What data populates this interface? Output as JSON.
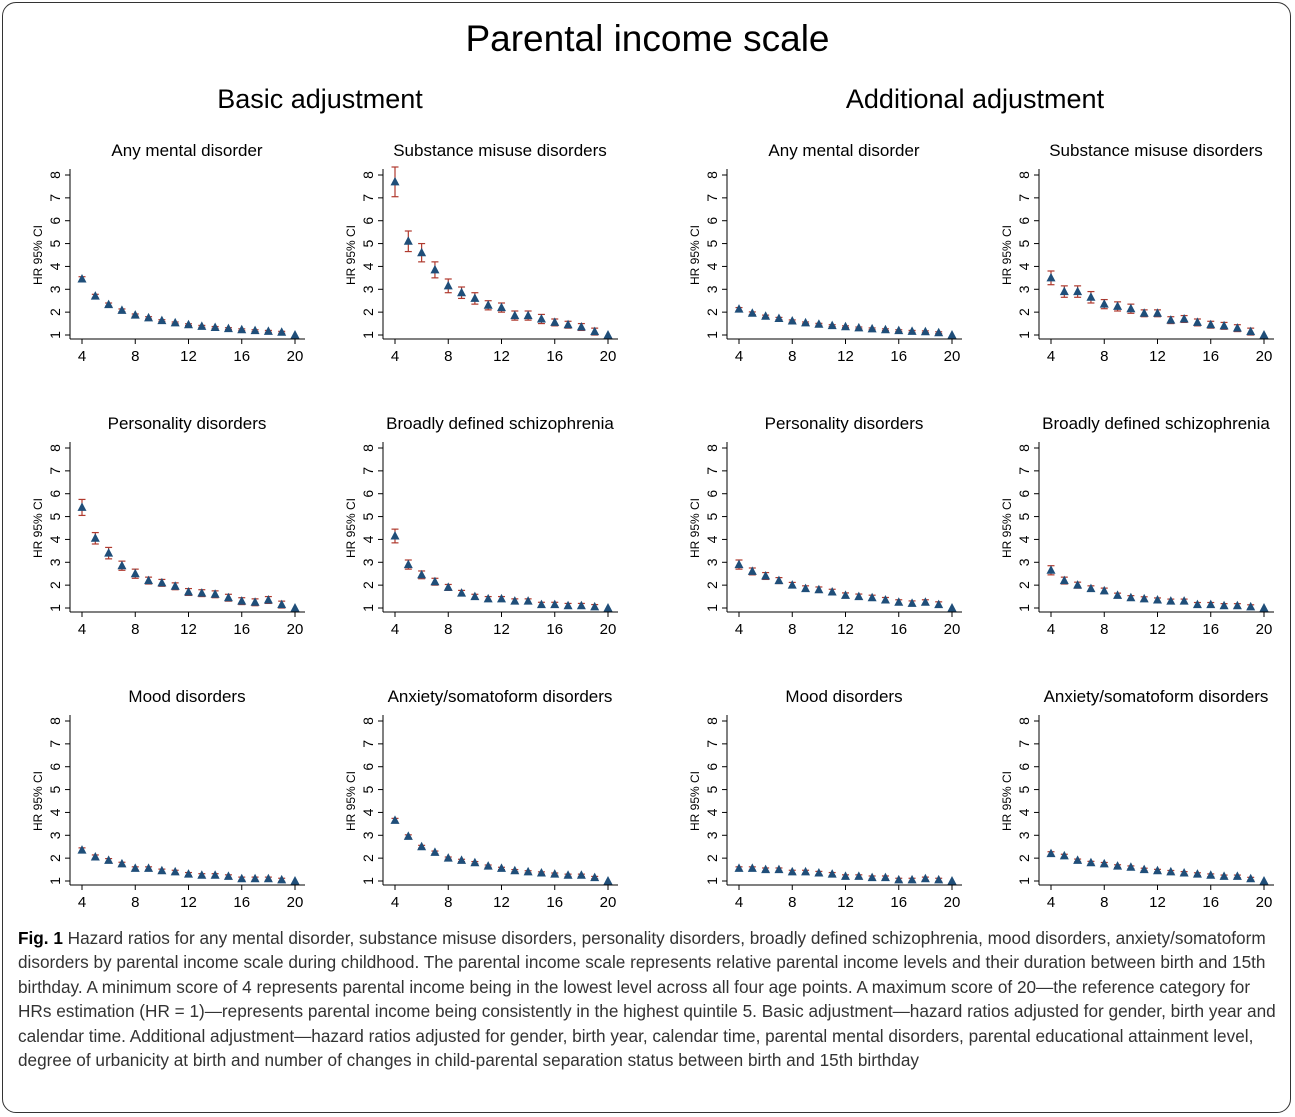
{
  "figure": {
    "main_title": "Parental income scale",
    "group_titles": [
      "Basic adjustment",
      "Additional adjustment"
    ],
    "caption_label": "Fig. 1",
    "caption_text": "Hazard ratios for any mental disorder, substance misuse disorders, personality disorders, broadly defined schizophrenia, mood disorders, anxiety/somatoform disorders by parental income scale during childhood. The parental income scale represents relative parental income levels and their duration between birth and 15th birthday. A minimum score of 4 represents parental income being in the lowest level across all four age points. A maximum score of 20—the reference category for HRs estimation (HR = 1)—represents parental income being consistently in the highest quintile 5. Basic adjustment—hazard ratios adjusted for gender, birth year and calendar time. Additional adjustment—hazard ratios adjusted for gender, birth year, calendar time, parental mental disorders, parental educational attainment level, degree of urbanicity at birth and number of changes in child-parental separation status between birth and 15th birthday"
  },
  "colors": {
    "marker": "#1f4e79",
    "ci": "#b03a2e",
    "axis": "#000000"
  },
  "chart_data": [
    {
      "type": "scatter",
      "group": "Basic adjustment",
      "title": "Any mental disorder",
      "ylabel": "HR 95% CI",
      "xlim": [
        4,
        20
      ],
      "ylim": [
        1,
        8
      ],
      "xticks": [
        4,
        8,
        12,
        16,
        20
      ],
      "yticks": [
        1,
        2,
        3,
        4,
        5,
        6,
        7,
        8
      ],
      "x": [
        4,
        5,
        6,
        7,
        8,
        9,
        10,
        11,
        12,
        13,
        14,
        15,
        16,
        17,
        18,
        19,
        20
      ],
      "y": [
        3.45,
        2.7,
        2.33,
        2.08,
        1.87,
        1.75,
        1.63,
        1.53,
        1.45,
        1.38,
        1.33,
        1.28,
        1.23,
        1.19,
        1.16,
        1.12,
        1.0
      ],
      "ci_low": [
        3.35,
        2.62,
        2.26,
        2.02,
        1.82,
        1.7,
        1.59,
        1.49,
        1.41,
        1.34,
        1.29,
        1.24,
        1.19,
        1.15,
        1.12,
        1.08,
        1.0
      ],
      "ci_high": [
        3.55,
        2.78,
        2.4,
        2.14,
        1.92,
        1.8,
        1.67,
        1.57,
        1.49,
        1.42,
        1.37,
        1.32,
        1.27,
        1.23,
        1.2,
        1.16,
        1.0
      ]
    },
    {
      "type": "scatter",
      "group": "Basic adjustment",
      "title": "Substance misuse disorders",
      "ylabel": "HR 95% CI",
      "xlim": [
        4,
        20
      ],
      "ylim": [
        1,
        8
      ],
      "xticks": [
        4,
        8,
        12,
        16,
        20
      ],
      "yticks": [
        1,
        2,
        3,
        4,
        5,
        6,
        7,
        8
      ],
      "x": [
        4,
        5,
        6,
        7,
        8,
        9,
        10,
        11,
        12,
        13,
        14,
        15,
        16,
        17,
        18,
        19,
        20
      ],
      "y": [
        7.7,
        5.1,
        4.6,
        3.85,
        3.15,
        2.85,
        2.6,
        2.3,
        2.2,
        1.85,
        1.85,
        1.7,
        1.55,
        1.45,
        1.35,
        1.15,
        1.0
      ],
      "ci_low": [
        7.05,
        4.65,
        4.2,
        3.5,
        2.85,
        2.6,
        2.35,
        2.1,
        2.0,
        1.65,
        1.65,
        1.5,
        1.4,
        1.3,
        1.2,
        1.0,
        1.0
      ],
      "ci_high": [
        8.35,
        5.55,
        5.0,
        4.2,
        3.45,
        3.1,
        2.85,
        2.5,
        2.4,
        2.05,
        2.05,
        1.9,
        1.7,
        1.6,
        1.5,
        1.3,
        1.0
      ]
    },
    {
      "type": "scatter",
      "group": "Additional adjustment",
      "title": "Any mental disorder",
      "ylabel": "HR 95% CI",
      "xlim": [
        4,
        20
      ],
      "ylim": [
        1,
        8
      ],
      "xticks": [
        4,
        8,
        12,
        16,
        20
      ],
      "yticks": [
        1,
        2,
        3,
        4,
        5,
        6,
        7,
        8
      ],
      "x": [
        4,
        5,
        6,
        7,
        8,
        9,
        10,
        11,
        12,
        13,
        14,
        15,
        16,
        17,
        18,
        19,
        20
      ],
      "y": [
        2.13,
        1.95,
        1.82,
        1.72,
        1.61,
        1.53,
        1.47,
        1.41,
        1.36,
        1.31,
        1.27,
        1.23,
        1.19,
        1.16,
        1.14,
        1.1,
        1.0
      ],
      "ci_low": [
        2.06,
        1.89,
        1.77,
        1.67,
        1.56,
        1.49,
        1.43,
        1.37,
        1.32,
        1.27,
        1.23,
        1.19,
        1.15,
        1.12,
        1.1,
        1.06,
        1.0
      ],
      "ci_high": [
        2.2,
        2.01,
        1.87,
        1.77,
        1.66,
        1.57,
        1.51,
        1.45,
        1.4,
        1.35,
        1.31,
        1.27,
        1.23,
        1.2,
        1.18,
        1.14,
        1.0
      ]
    },
    {
      "type": "scatter",
      "group": "Additional adjustment",
      "title": "Substance misuse disorders",
      "ylabel": "HR 95% CI",
      "xlim": [
        4,
        20
      ],
      "ylim": [
        1,
        8
      ],
      "xticks": [
        4,
        8,
        12,
        16,
        20
      ],
      "yticks": [
        1,
        2,
        3,
        4,
        5,
        6,
        7,
        8
      ],
      "x": [
        4,
        5,
        6,
        7,
        8,
        9,
        10,
        11,
        12,
        13,
        14,
        15,
        16,
        17,
        18,
        19,
        20
      ],
      "y": [
        3.5,
        2.9,
        2.9,
        2.65,
        2.35,
        2.25,
        2.15,
        1.95,
        1.95,
        1.65,
        1.7,
        1.55,
        1.45,
        1.4,
        1.3,
        1.15,
        1.0
      ],
      "ci_low": [
        3.2,
        2.65,
        2.65,
        2.4,
        2.15,
        2.05,
        1.95,
        1.8,
        1.8,
        1.5,
        1.55,
        1.4,
        1.3,
        1.25,
        1.15,
        1.0,
        1.0
      ],
      "ci_high": [
        3.8,
        3.15,
        3.15,
        2.9,
        2.55,
        2.45,
        2.35,
        2.1,
        2.1,
        1.8,
        1.85,
        1.7,
        1.6,
        1.55,
        1.45,
        1.3,
        1.0
      ]
    },
    {
      "type": "scatter",
      "group": "Basic adjustment",
      "title": "Personality disorders",
      "ylabel": "HR 95% CI",
      "xlim": [
        4,
        20
      ],
      "ylim": [
        1,
        8
      ],
      "xticks": [
        4,
        8,
        12,
        16,
        20
      ],
      "yticks": [
        1,
        2,
        3,
        4,
        5,
        6,
        7,
        8
      ],
      "x": [
        4,
        5,
        6,
        7,
        8,
        9,
        10,
        11,
        12,
        13,
        14,
        15,
        16,
        17,
        18,
        19,
        20
      ],
      "y": [
        5.4,
        4.05,
        3.4,
        2.85,
        2.5,
        2.2,
        2.1,
        1.95,
        1.7,
        1.65,
        1.6,
        1.45,
        1.3,
        1.25,
        1.35,
        1.15,
        1.0
      ],
      "ci_low": [
        5.05,
        3.8,
        3.15,
        2.65,
        2.3,
        2.05,
        1.95,
        1.8,
        1.55,
        1.5,
        1.45,
        1.3,
        1.15,
        1.1,
        1.2,
        1.0,
        1.0
      ],
      "ci_high": [
        5.75,
        4.3,
        3.65,
        3.05,
        2.7,
        2.35,
        2.25,
        2.1,
        1.85,
        1.8,
        1.75,
        1.6,
        1.45,
        1.4,
        1.5,
        1.3,
        1.0
      ]
    },
    {
      "type": "scatter",
      "group": "Basic adjustment",
      "title": "Broadly defined schizophrenia",
      "ylabel": "HR 95% CI",
      "xlim": [
        4,
        20
      ],
      "ylim": [
        1,
        8
      ],
      "xticks": [
        4,
        8,
        12,
        16,
        20
      ],
      "yticks": [
        1,
        2,
        3,
        4,
        5,
        6,
        7,
        8
      ],
      "x": [
        4,
        5,
        6,
        7,
        8,
        9,
        10,
        11,
        12,
        13,
        14,
        15,
        16,
        17,
        18,
        19,
        20
      ],
      "y": [
        4.15,
        2.9,
        2.45,
        2.15,
        1.9,
        1.65,
        1.5,
        1.4,
        1.4,
        1.3,
        1.3,
        1.15,
        1.15,
        1.1,
        1.1,
        1.05,
        1.0
      ],
      "ci_low": [
        3.85,
        2.7,
        2.28,
        2.0,
        1.77,
        1.53,
        1.4,
        1.3,
        1.3,
        1.2,
        1.2,
        1.05,
        1.05,
        1.0,
        1.0,
        0.95,
        1.0
      ],
      "ci_high": [
        4.45,
        3.1,
        2.62,
        2.3,
        2.03,
        1.77,
        1.6,
        1.5,
        1.5,
        1.4,
        1.4,
        1.25,
        1.25,
        1.2,
        1.2,
        1.15,
        1.0
      ]
    },
    {
      "type": "scatter",
      "group": "Additional adjustment",
      "title": "Personality disorders",
      "ylabel": "HR 95% CI",
      "xlim": [
        4,
        20
      ],
      "ylim": [
        1,
        8
      ],
      "xticks": [
        4,
        8,
        12,
        16,
        20
      ],
      "yticks": [
        1,
        2,
        3,
        4,
        5,
        6,
        7,
        8
      ],
      "x": [
        4,
        5,
        6,
        7,
        8,
        9,
        10,
        11,
        12,
        13,
        14,
        15,
        16,
        17,
        18,
        19,
        20
      ],
      "y": [
        2.9,
        2.6,
        2.4,
        2.2,
        2.0,
        1.85,
        1.8,
        1.7,
        1.55,
        1.5,
        1.45,
        1.35,
        1.25,
        1.2,
        1.25,
        1.15,
        1.0
      ],
      "ci_low": [
        2.7,
        2.45,
        2.25,
        2.07,
        1.88,
        1.73,
        1.68,
        1.58,
        1.44,
        1.39,
        1.34,
        1.24,
        1.14,
        1.09,
        1.14,
        1.03,
        1.0
      ],
      "ci_high": [
        3.1,
        2.75,
        2.55,
        2.33,
        2.12,
        1.97,
        1.92,
        1.82,
        1.66,
        1.61,
        1.56,
        1.46,
        1.36,
        1.31,
        1.36,
        1.27,
        1.0
      ]
    },
    {
      "type": "scatter",
      "group": "Additional adjustment",
      "title": "Broadly defined schizophrenia",
      "ylabel": "HR 95% CI",
      "xlim": [
        4,
        20
      ],
      "ylim": [
        1,
        8
      ],
      "xticks": [
        4,
        8,
        12,
        16,
        20
      ],
      "yticks": [
        1,
        2,
        3,
        4,
        5,
        6,
        7,
        8
      ],
      "x": [
        4,
        5,
        6,
        7,
        8,
        9,
        10,
        11,
        12,
        13,
        14,
        15,
        16,
        17,
        18,
        19,
        20
      ],
      "y": [
        2.65,
        2.2,
        2.0,
        1.85,
        1.75,
        1.55,
        1.45,
        1.4,
        1.35,
        1.3,
        1.3,
        1.15,
        1.15,
        1.1,
        1.1,
        1.05,
        1.0
      ],
      "ci_low": [
        2.45,
        2.05,
        1.87,
        1.73,
        1.63,
        1.45,
        1.36,
        1.31,
        1.26,
        1.21,
        1.21,
        1.06,
        1.06,
        1.01,
        1.01,
        0.96,
        1.0
      ],
      "ci_high": [
        2.85,
        2.35,
        2.13,
        1.97,
        1.87,
        1.65,
        1.54,
        1.49,
        1.44,
        1.39,
        1.39,
        1.24,
        1.24,
        1.19,
        1.19,
        1.14,
        1.0
      ]
    },
    {
      "type": "scatter",
      "group": "Basic adjustment",
      "title": "Mood disorders",
      "ylabel": "HR 95% CI",
      "xlim": [
        4,
        20
      ],
      "ylim": [
        1,
        8
      ],
      "xticks": [
        4,
        8,
        12,
        16,
        20
      ],
      "yticks": [
        1,
        2,
        3,
        4,
        5,
        6,
        7,
        8
      ],
      "x": [
        4,
        5,
        6,
        7,
        8,
        9,
        10,
        11,
        12,
        13,
        14,
        15,
        16,
        17,
        18,
        19,
        20
      ],
      "y": [
        2.35,
        2.05,
        1.9,
        1.75,
        1.55,
        1.55,
        1.45,
        1.4,
        1.3,
        1.25,
        1.25,
        1.2,
        1.1,
        1.1,
        1.1,
        1.05,
        1.0
      ],
      "ci_low": [
        2.25,
        1.96,
        1.82,
        1.68,
        1.48,
        1.48,
        1.38,
        1.33,
        1.23,
        1.18,
        1.18,
        1.13,
        1.03,
        1.03,
        1.03,
        0.98,
        1.0
      ],
      "ci_high": [
        2.45,
        2.14,
        1.98,
        1.82,
        1.62,
        1.62,
        1.52,
        1.47,
        1.37,
        1.32,
        1.32,
        1.27,
        1.17,
        1.17,
        1.17,
        1.12,
        1.0
      ]
    },
    {
      "type": "scatter",
      "group": "Basic adjustment",
      "title": "Anxiety/somatoform disorders",
      "ylabel": "HR 95% CI",
      "xlim": [
        4,
        20
      ],
      "ylim": [
        1,
        8
      ],
      "xticks": [
        4,
        8,
        12,
        16,
        20
      ],
      "yticks": [
        1,
        2,
        3,
        4,
        5,
        6,
        7,
        8
      ],
      "x": [
        4,
        5,
        6,
        7,
        8,
        9,
        10,
        11,
        12,
        13,
        14,
        15,
        16,
        17,
        18,
        19,
        20
      ],
      "y": [
        3.65,
        2.95,
        2.5,
        2.25,
        2.0,
        1.9,
        1.8,
        1.65,
        1.55,
        1.45,
        1.4,
        1.35,
        1.3,
        1.25,
        1.25,
        1.15,
        1.0
      ],
      "ci_low": [
        3.56,
        2.88,
        2.44,
        2.19,
        1.95,
        1.85,
        1.75,
        1.6,
        1.5,
        1.4,
        1.35,
        1.3,
        1.25,
        1.2,
        1.2,
        1.1,
        1.0
      ],
      "ci_high": [
        3.74,
        3.02,
        2.56,
        2.31,
        2.05,
        1.95,
        1.85,
        1.7,
        1.6,
        1.5,
        1.45,
        1.4,
        1.35,
        1.3,
        1.3,
        1.2,
        1.0
      ]
    },
    {
      "type": "scatter",
      "group": "Additional adjustment",
      "title": "Mood disorders",
      "ylabel": "HR 95% CI",
      "xlim": [
        4,
        20
      ],
      "ylim": [
        1,
        8
      ],
      "xticks": [
        4,
        8,
        12,
        16,
        20
      ],
      "yticks": [
        1,
        2,
        3,
        4,
        5,
        6,
        7,
        8
      ],
      "x": [
        4,
        5,
        6,
        7,
        8,
        9,
        10,
        11,
        12,
        13,
        14,
        15,
        16,
        17,
        18,
        19,
        20
      ],
      "y": [
        1.55,
        1.55,
        1.5,
        1.5,
        1.4,
        1.4,
        1.35,
        1.3,
        1.2,
        1.2,
        1.15,
        1.15,
        1.05,
        1.05,
        1.1,
        1.05,
        1.0
      ],
      "ci_low": [
        1.48,
        1.48,
        1.43,
        1.43,
        1.33,
        1.33,
        1.28,
        1.23,
        1.13,
        1.13,
        1.08,
        1.08,
        0.98,
        0.98,
        1.03,
        0.98,
        1.0
      ],
      "ci_high": [
        1.62,
        1.62,
        1.57,
        1.57,
        1.47,
        1.47,
        1.42,
        1.37,
        1.27,
        1.27,
        1.22,
        1.22,
        1.12,
        1.12,
        1.17,
        1.12,
        1.0
      ]
    },
    {
      "type": "scatter",
      "group": "Additional adjustment",
      "title": "Anxiety/somatoform disorders",
      "ylabel": "HR 95% CI",
      "xlim": [
        4,
        20
      ],
      "ylim": [
        1,
        8
      ],
      "xticks": [
        4,
        8,
        12,
        16,
        20
      ],
      "yticks": [
        1,
        2,
        3,
        4,
        5,
        6,
        7,
        8
      ],
      "x": [
        4,
        5,
        6,
        7,
        8,
        9,
        10,
        11,
        12,
        13,
        14,
        15,
        16,
        17,
        18,
        19,
        20
      ],
      "y": [
        2.2,
        2.1,
        1.9,
        1.8,
        1.75,
        1.65,
        1.6,
        1.5,
        1.45,
        1.4,
        1.35,
        1.3,
        1.25,
        1.2,
        1.2,
        1.1,
        1.0
      ],
      "ci_low": [
        2.12,
        2.03,
        1.84,
        1.74,
        1.69,
        1.59,
        1.54,
        1.44,
        1.39,
        1.34,
        1.29,
        1.24,
        1.19,
        1.14,
        1.14,
        1.04,
        1.0
      ],
      "ci_high": [
        2.28,
        2.17,
        1.96,
        1.86,
        1.81,
        1.71,
        1.66,
        1.56,
        1.51,
        1.46,
        1.41,
        1.36,
        1.31,
        1.26,
        1.26,
        1.16,
        1.0
      ]
    }
  ]
}
